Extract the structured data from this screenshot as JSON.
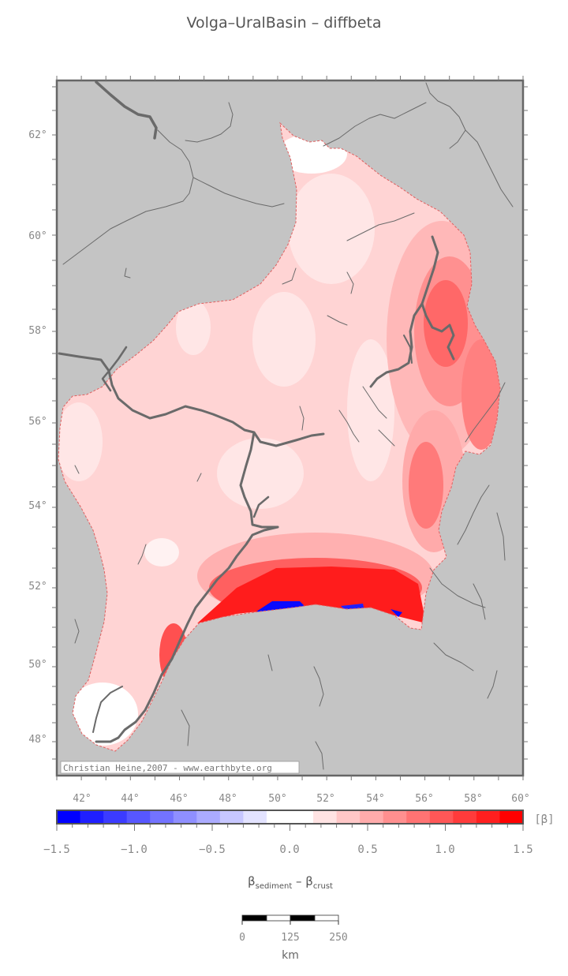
{
  "title": "Volga–UralBasin – diffbeta",
  "map": {
    "lat_labels": [
      "62°",
      "60°",
      "58°",
      "56°",
      "54°",
      "52°",
      "50°",
      "48°"
    ],
    "lon_labels": [
      "42°",
      "44°",
      "46°",
      "48°",
      "50°",
      "52°",
      "54°",
      "56°",
      "58°",
      "60°"
    ],
    "credit": "Christian Heine,2007 - www.earthbyte.org",
    "land_color": "#c4c4c4",
    "river_color": "#606060"
  },
  "colorbar": {
    "tick_labels": [
      "−1.5",
      "−1.0",
      "−0.5",
      "0.0",
      "0.5",
      "1.0",
      "1.5"
    ],
    "unit": "[β]",
    "colors": [
      "#0000ff",
      "#1f1fff",
      "#3b3bff",
      "#5757ff",
      "#7373ff",
      "#8f8fff",
      "#ababff",
      "#c7c7ff",
      "#e3e3ff",
      "#ffffff",
      "#ffffff",
      "#ffe3e3",
      "#ffc7c7",
      "#ffabab",
      "#ff8f8f",
      "#ff7373",
      "#ff5757",
      "#ff3b3b",
      "#ff1f1f",
      "#ff0000"
    ]
  },
  "axis_title": {
    "beta": "β",
    "sub1": "sediment",
    "minus": " – ",
    "sub2": "crust"
  },
  "scalebar": {
    "labels": [
      "0",
      "125",
      "250"
    ],
    "unit": "km"
  }
}
